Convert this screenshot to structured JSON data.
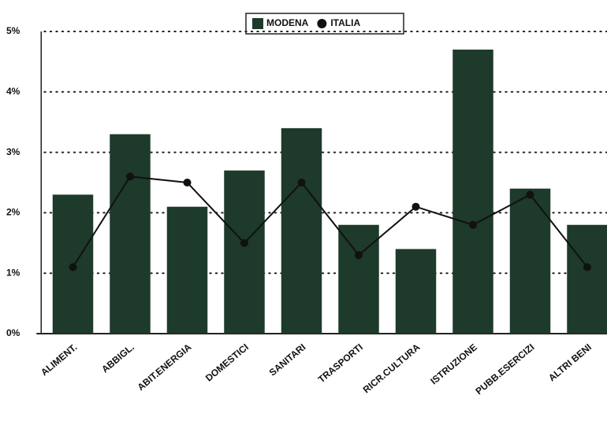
{
  "chart_data": {
    "type": "bar",
    "categories": [
      "ALIMENT.",
      "ABBIGL.",
      "ABIT.ENERGIA",
      "DOMESTICI",
      "SANITARI",
      "TRASPORTI",
      "RICR.CULTURA",
      "ISTRUZIONE",
      "PUBB.ESERCIZI",
      "ALTRI BENI"
    ],
    "series": [
      {
        "name": "MODENA",
        "type": "bar",
        "color": "#1d3a2b",
        "values": [
          2.3,
          3.3,
          2.1,
          2.7,
          3.4,
          1.8,
          1.4,
          4.7,
          2.4,
          1.8
        ]
      },
      {
        "name": "ITALIA",
        "type": "line",
        "color": "#111111",
        "values": [
          1.1,
          2.6,
          2.5,
          1.5,
          2.5,
          1.3,
          2.1,
          1.8,
          2.3,
          1.1
        ]
      }
    ],
    "ylim": [
      0,
      5
    ],
    "yticks": [
      {
        "value": 0,
        "label": "0%"
      },
      {
        "value": 1,
        "label": "1%"
      },
      {
        "value": 2,
        "label": "2%"
      },
      {
        "value": 3,
        "label": "3%"
      },
      {
        "value": 4,
        "label": "4%"
      },
      {
        "value": 5,
        "label": "5%"
      }
    ],
    "grid": true,
    "legend": "top"
  }
}
